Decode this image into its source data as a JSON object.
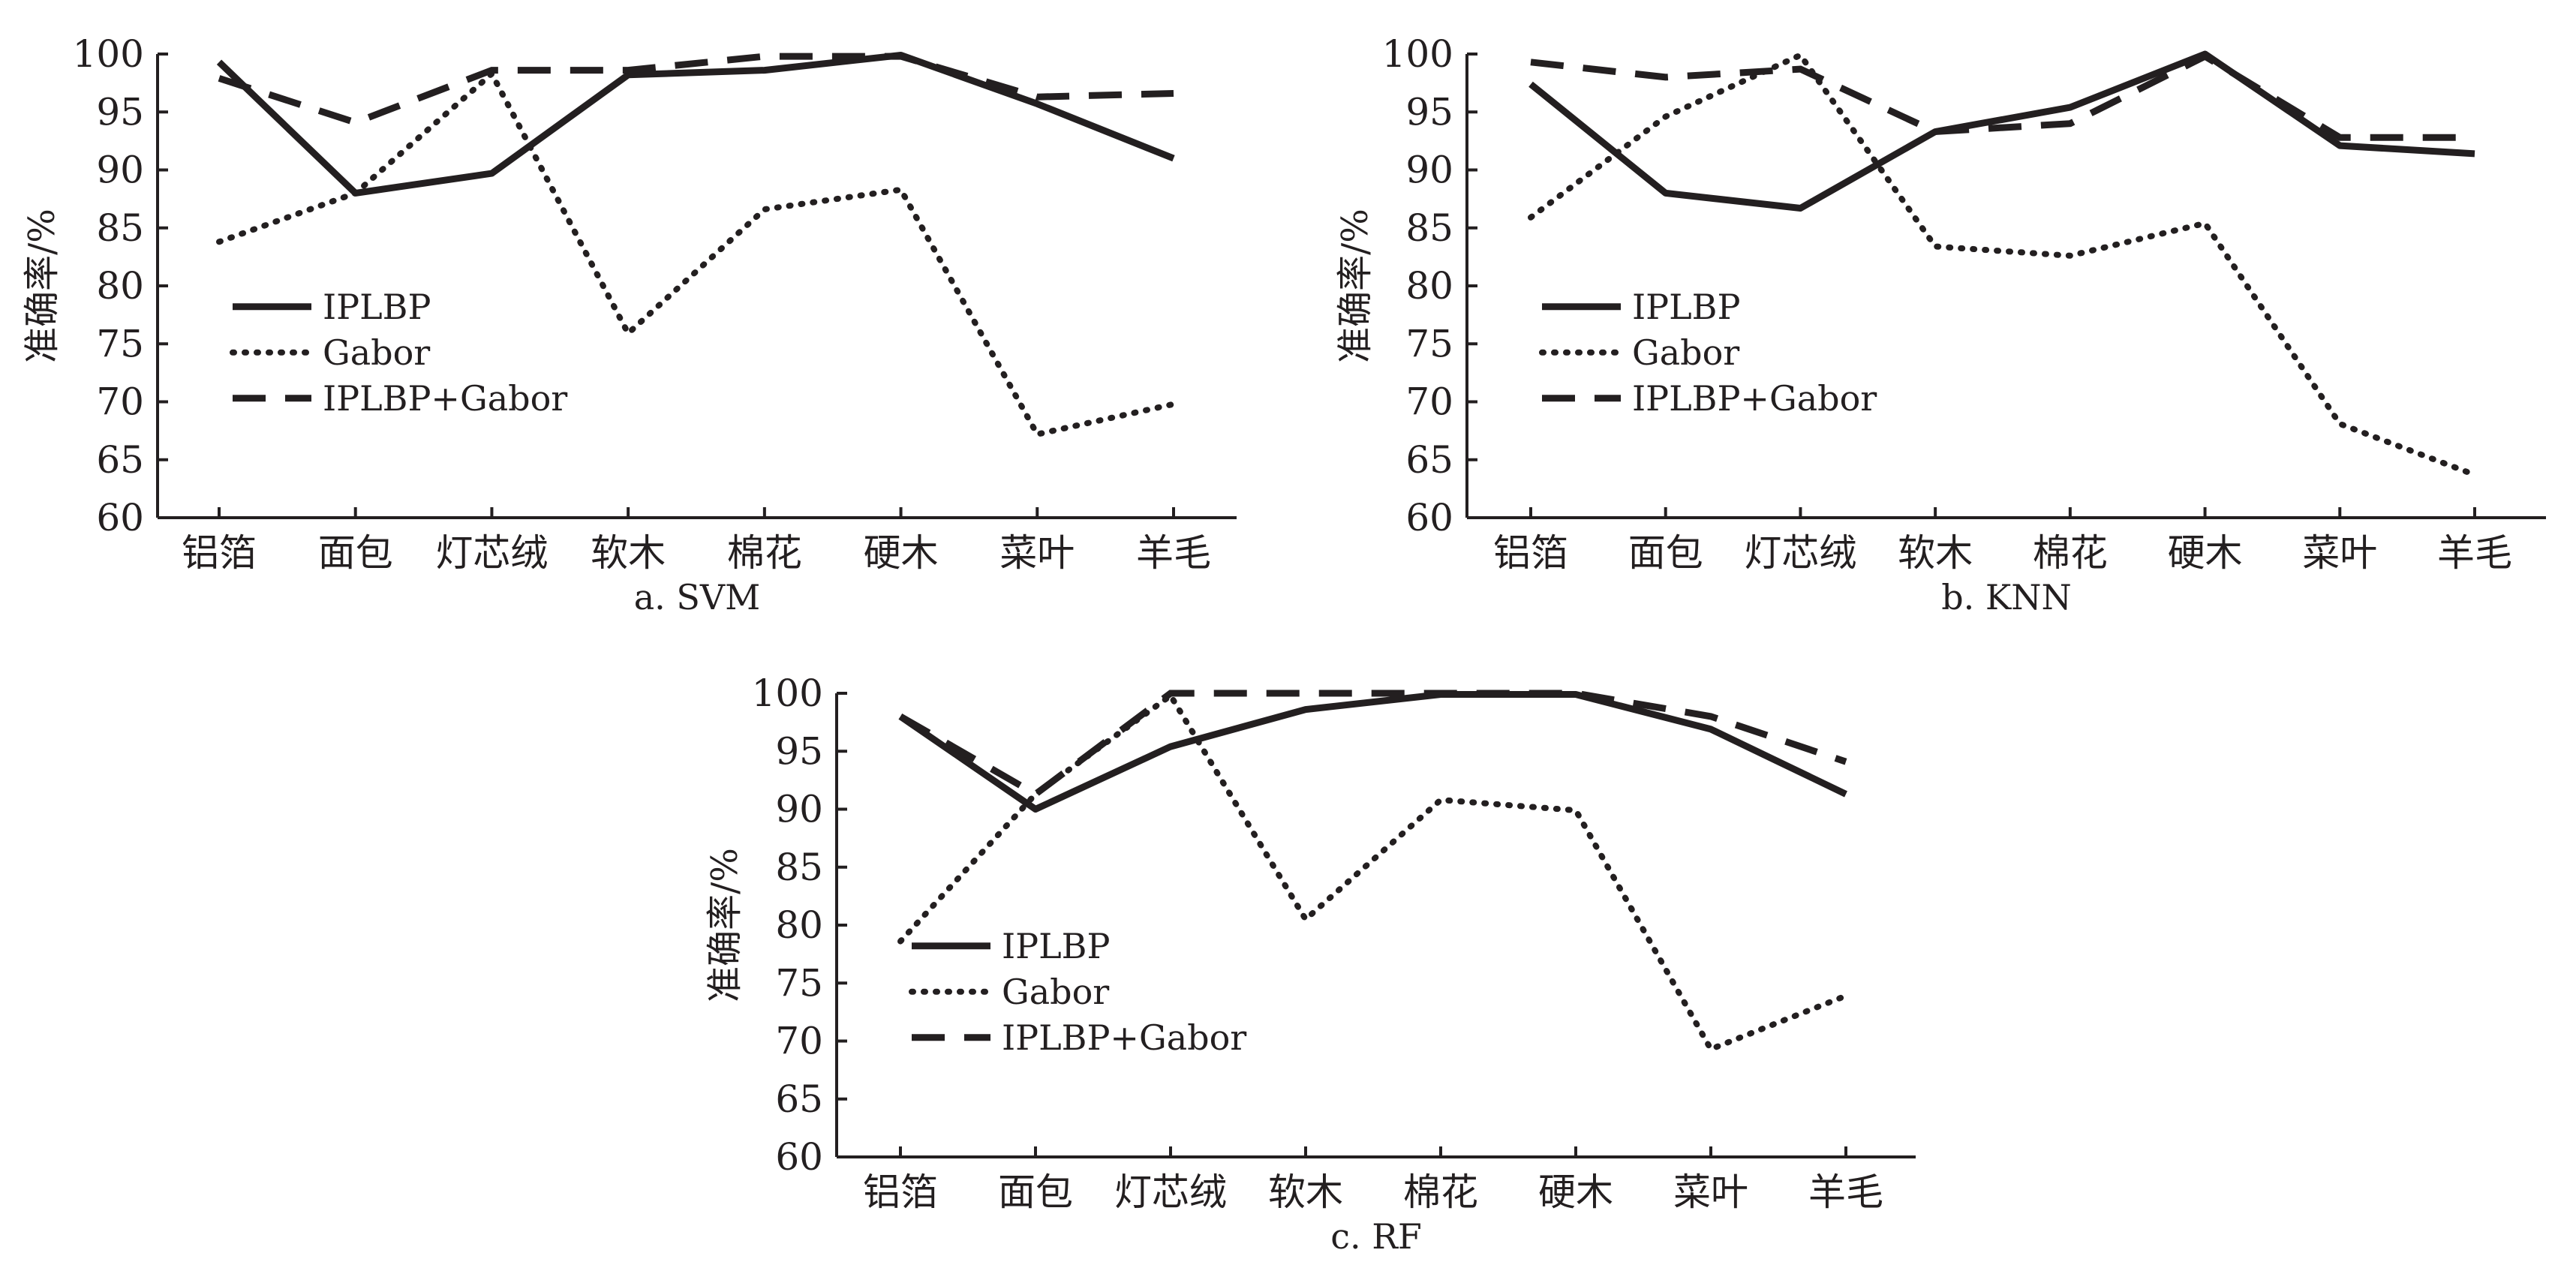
{
  "chart_data": [
    {
      "type": "line",
      "caption": "a. SVM",
      "ylabel": "准确率/%",
      "ylim": [
        60,
        100
      ],
      "yticks": [
        60,
        65,
        70,
        75,
        80,
        85,
        90,
        95,
        100
      ],
      "categories": [
        "铝箔",
        "面包",
        "灯芯绒",
        "软木",
        "棉花",
        "硬木",
        "菜叶",
        "羊毛"
      ],
      "legend_position": "left-lower",
      "series": [
        {
          "name": "IPLBP",
          "style": "solid",
          "values": [
            99.3,
            88.0,
            89.7,
            98.2,
            98.6,
            99.9,
            95.7,
            91.0
          ]
        },
        {
          "name": "Gabor",
          "style": "dotted",
          "values": [
            83.8,
            88.0,
            98.3,
            75.9,
            86.6,
            88.3,
            67.2,
            69.8
          ]
        },
        {
          "name": "IPLBP+Gabor",
          "style": "dashed",
          "values": [
            97.9,
            94.1,
            98.6,
            98.6,
            99.8,
            99.8,
            96.3,
            96.6
          ]
        }
      ]
    },
    {
      "type": "line",
      "caption": "b. KNN",
      "ylabel": "准确率/%",
      "ylim": [
        60,
        100
      ],
      "yticks": [
        60,
        65,
        70,
        75,
        80,
        85,
        90,
        95,
        100
      ],
      "categories": [
        "铝箔",
        "面包",
        "灯芯绒",
        "软木",
        "棉花",
        "硬木",
        "菜叶",
        "羊毛"
      ],
      "legend_position": "left-lower",
      "series": [
        {
          "name": "IPLBP",
          "style": "solid",
          "values": [
            97.4,
            88.0,
            86.7,
            93.3,
            95.4,
            100.0,
            92.1,
            91.4
          ]
        },
        {
          "name": "Gabor",
          "style": "dotted",
          "values": [
            85.9,
            94.6,
            99.9,
            83.4,
            82.6,
            85.4,
            68.1,
            63.7
          ]
        },
        {
          "name": "IPLBP+Gabor",
          "style": "dashed",
          "values": [
            99.3,
            98.0,
            98.7,
            93.3,
            94.0,
            99.8,
            92.8,
            92.8
          ]
        }
      ]
    },
    {
      "type": "line",
      "caption": "c. RF",
      "ylabel": "准确率/%",
      "ylim": [
        60,
        100
      ],
      "yticks": [
        60,
        65,
        70,
        75,
        80,
        85,
        90,
        95,
        100
      ],
      "categories": [
        "铝箔",
        "面包",
        "灯芯绒",
        "软木",
        "棉花",
        "硬木",
        "菜叶",
        "羊毛"
      ],
      "legend_position": "left-lower",
      "series": [
        {
          "name": "IPLBP",
          "style": "solid",
          "values": [
            98.0,
            90.0,
            95.4,
            98.6,
            99.9,
            99.9,
            96.9,
            91.3
          ]
        },
        {
          "name": "Gabor",
          "style": "dotted",
          "values": [
            78.6,
            91.3,
            99.8,
            80.5,
            90.8,
            89.9,
            69.3,
            73.9
          ]
        },
        {
          "name": "IPLBP+Gabor",
          "style": "dashed",
          "values": [
            98.0,
            91.3,
            100.0,
            100.0,
            100.0,
            100.0,
            98.0,
            94.1
          ]
        }
      ]
    }
  ]
}
